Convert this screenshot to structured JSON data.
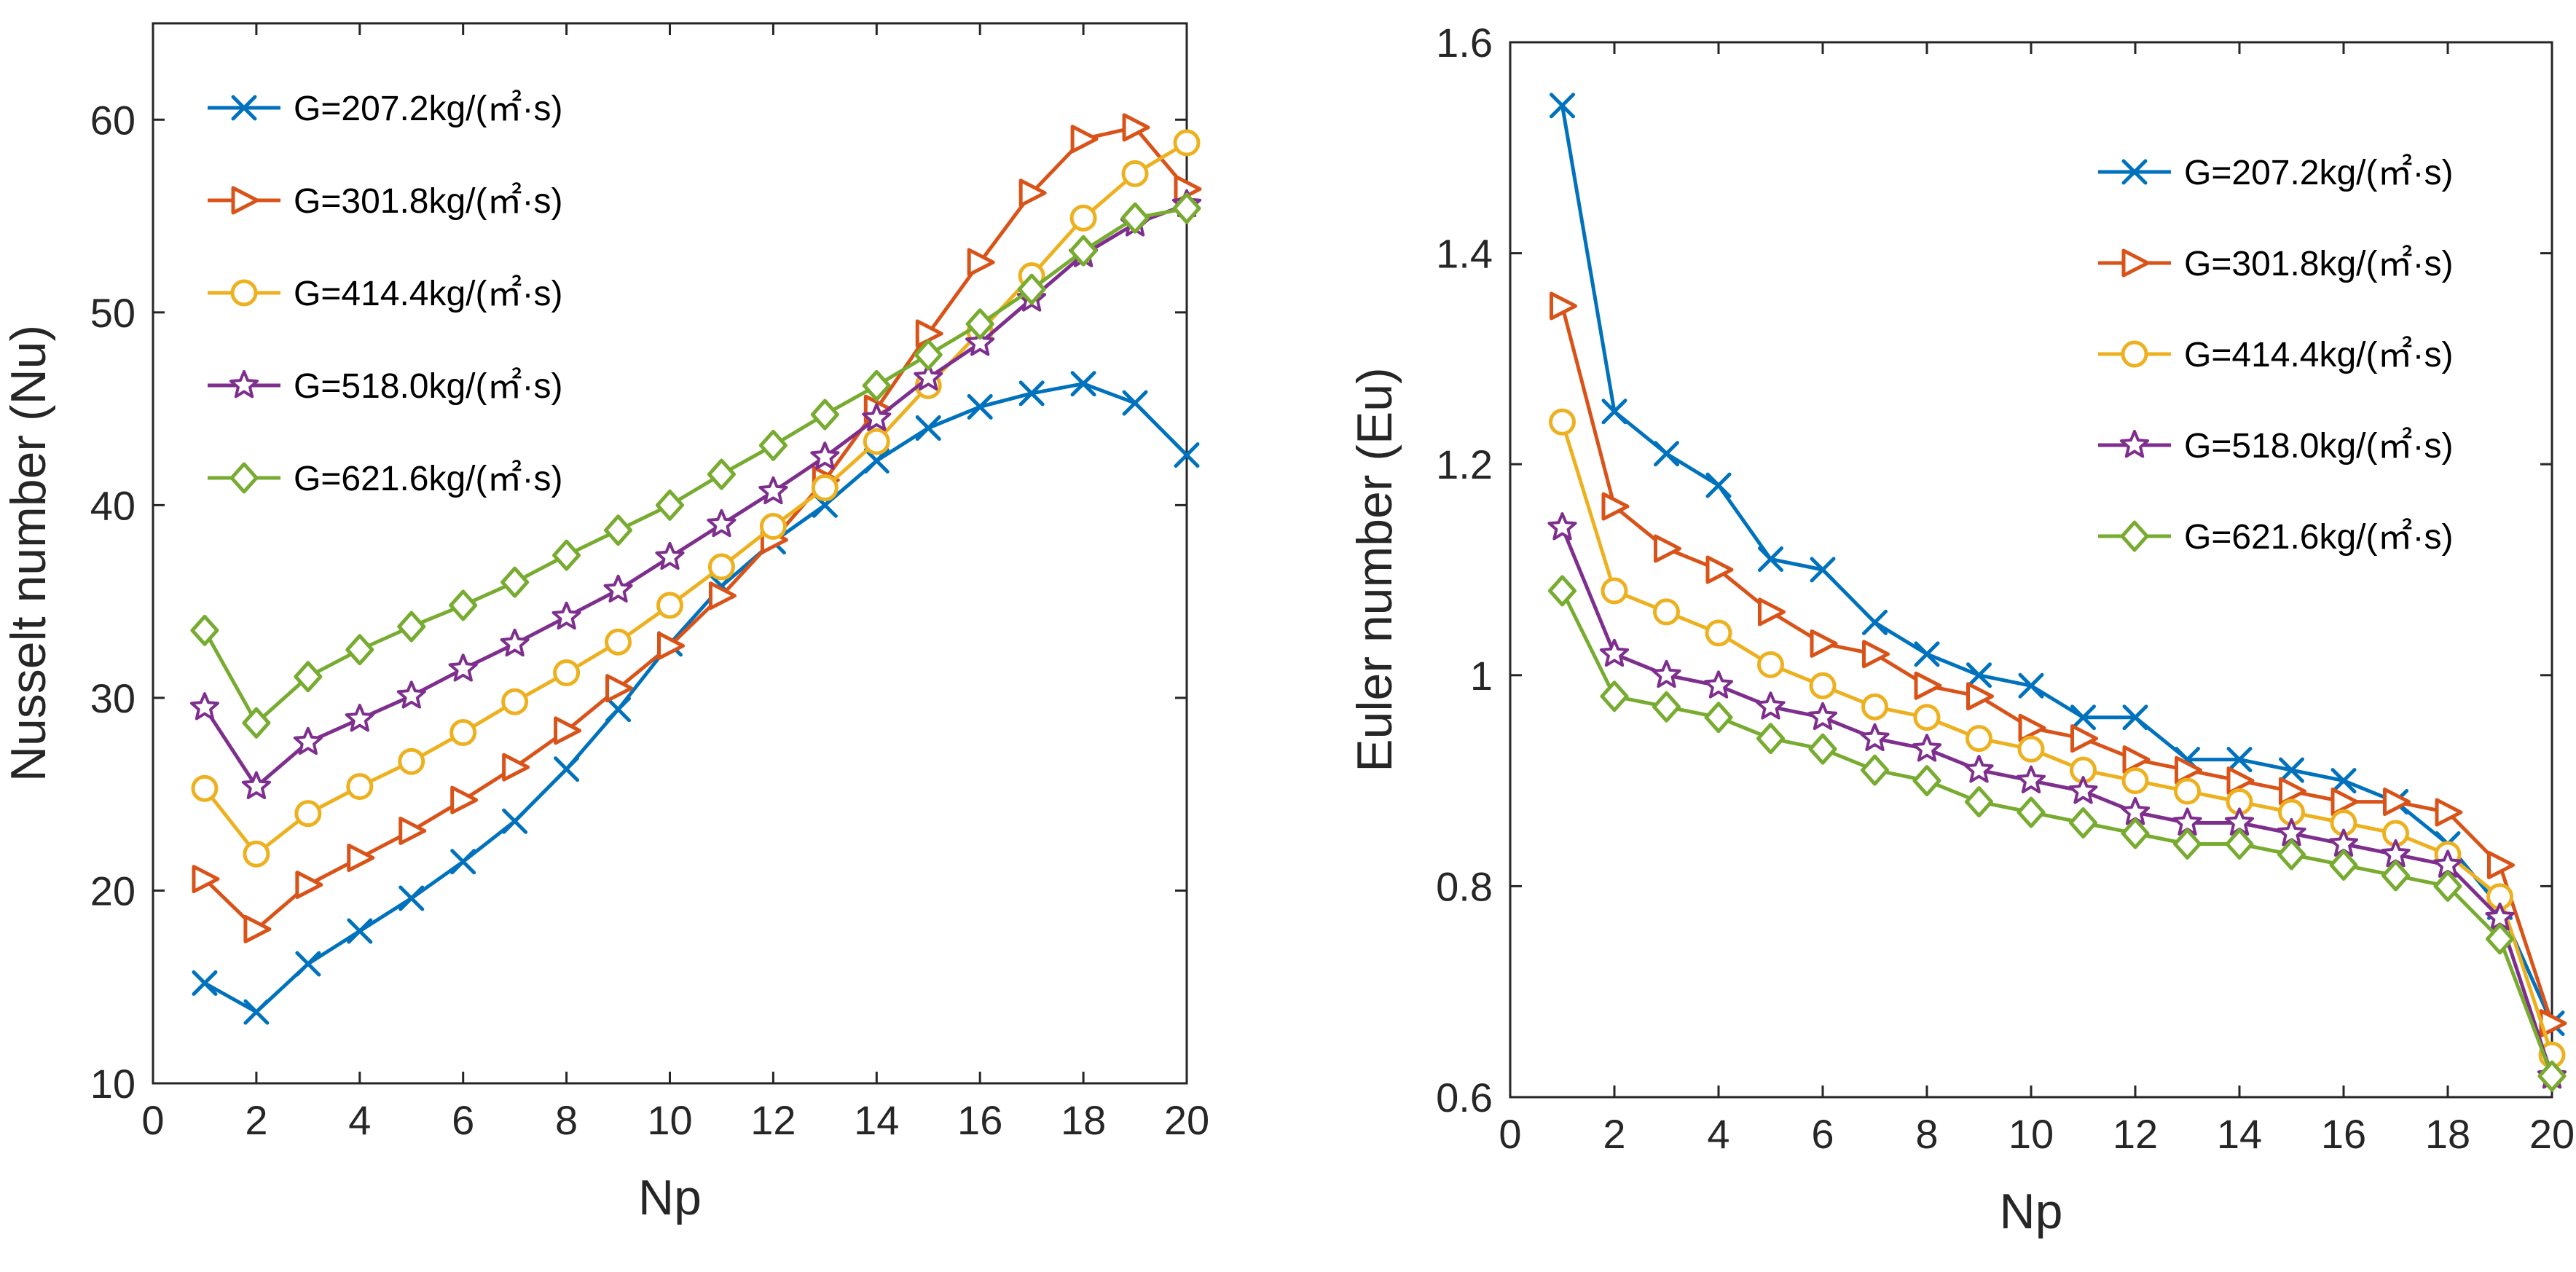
{
  "chart_data": [
    {
      "type": "line",
      "title": "",
      "xlabel": "Np",
      "ylabel": "Nusselt number (Nu)",
      "xlim": [
        0,
        20
      ],
      "ylim": [
        10,
        65
      ],
      "xticks": [
        0,
        2,
        4,
        6,
        8,
        10,
        12,
        14,
        16,
        18,
        20
      ],
      "xtick_labels": [
        "0",
        "2",
        "4",
        "6",
        "8",
        "10",
        "12",
        "14",
        "16",
        "18",
        "20"
      ],
      "yticks": [
        10,
        20,
        30,
        40,
        50,
        60
      ],
      "ytick_labels": [
        "10",
        "20",
        "30",
        "40",
        "50",
        "60"
      ],
      "legend_position": "top-left",
      "grid": false,
      "x": [
        1,
        2,
        3,
        4,
        5,
        6,
        7,
        8,
        9,
        10,
        11,
        12,
        13,
        14,
        15,
        16,
        17,
        18,
        19,
        20
      ],
      "series": [
        {
          "name": "G=207.2kg/(㎡·s)",
          "color": "#0072BD",
          "marker": "x",
          "values": [
            15.2,
            13.7,
            16.2,
            17.9,
            19.6,
            21.5,
            23.6,
            26.3,
            29.4,
            32.8,
            35.8,
            38.1,
            40.0,
            42.3,
            44.0,
            45.1,
            45.8,
            46.3,
            45.3,
            42.6
          ]
        },
        {
          "name": "G=301.8kg/(㎡·s)",
          "color": "#D95319",
          "marker": "triangle-right",
          "values": [
            20.6,
            18.0,
            20.3,
            21.7,
            23.1,
            24.7,
            26.4,
            28.3,
            30.5,
            32.7,
            35.3,
            38.2,
            41.3,
            45.0,
            48.9,
            52.6,
            56.2,
            59.0,
            59.6,
            56.4
          ]
        },
        {
          "name": "G=414.4kg/(㎡·s)",
          "color": "#EDB120",
          "marker": "circle",
          "values": [
            25.3,
            21.9,
            24.0,
            25.4,
            26.7,
            28.2,
            29.8,
            31.3,
            32.9,
            34.8,
            36.8,
            38.9,
            40.9,
            43.3,
            46.2,
            49.0,
            51.9,
            54.9,
            57.2,
            58.8
          ]
        },
        {
          "name": "G=518.0kg/(㎡·s)",
          "color": "#7E2F8E",
          "marker": "star",
          "values": [
            29.5,
            25.4,
            27.7,
            28.9,
            30.1,
            31.5,
            32.8,
            34.2,
            35.6,
            37.3,
            39.0,
            40.7,
            42.5,
            44.5,
            46.6,
            48.4,
            50.7,
            53.0,
            54.6,
            55.6
          ]
        },
        {
          "name": "G=621.6kg/(㎡·s)",
          "color": "#77AC30",
          "marker": "diamond",
          "values": [
            33.5,
            28.7,
            31.1,
            32.5,
            33.7,
            34.8,
            36.0,
            37.4,
            38.7,
            40.0,
            41.6,
            43.1,
            44.7,
            46.2,
            47.8,
            49.4,
            51.2,
            53.2,
            54.9,
            55.4
          ]
        }
      ]
    },
    {
      "type": "line",
      "title": "",
      "xlabel": "Np",
      "ylabel": "Euler number (Eu)",
      "xlim": [
        0,
        20
      ],
      "ylim": [
        0.6,
        1.6
      ],
      "xticks": [
        0,
        2,
        4,
        6,
        8,
        10,
        12,
        14,
        16,
        18,
        20
      ],
      "xtick_labels": [
        "0",
        "2",
        "4",
        "6",
        "8",
        "10",
        "12",
        "14",
        "16",
        "18",
        "20"
      ],
      "yticks": [
        0.6,
        0.8,
        1.0,
        1.2,
        1.4,
        1.6
      ],
      "ytick_labels": [
        "0.6",
        "0.8",
        "1",
        "1.2",
        "1.4",
        "1.6"
      ],
      "legend_position": "top-right",
      "grid": false,
      "x": [
        1,
        2,
        3,
        4,
        5,
        6,
        7,
        8,
        9,
        10,
        11,
        12,
        13,
        14,
        15,
        16,
        17,
        18,
        19,
        20
      ],
      "series": [
        {
          "name": "G=207.2kg/(㎡·s)",
          "color": "#0072BD",
          "marker": "x",
          "values": [
            1.54,
            1.25,
            1.21,
            1.18,
            1.11,
            1.1,
            1.05,
            1.02,
            1.0,
            0.99,
            0.96,
            0.96,
            0.92,
            0.92,
            0.91,
            0.9,
            0.88,
            0.84,
            0.78,
            0.67
          ]
        },
        {
          "name": "G=301.8kg/(㎡·s)",
          "color": "#D95319",
          "marker": "triangle-right",
          "values": [
            1.35,
            1.16,
            1.12,
            1.1,
            1.06,
            1.03,
            1.02,
            0.99,
            0.98,
            0.95,
            0.94,
            0.92,
            0.91,
            0.9,
            0.89,
            0.88,
            0.88,
            0.87,
            0.82,
            0.67
          ]
        },
        {
          "name": "G=414.4kg/(㎡·s)",
          "color": "#EDB120",
          "marker": "circle",
          "values": [
            1.24,
            1.08,
            1.06,
            1.04,
            1.01,
            0.99,
            0.97,
            0.96,
            0.94,
            0.93,
            0.91,
            0.9,
            0.89,
            0.88,
            0.87,
            0.86,
            0.85,
            0.83,
            0.79,
            0.64
          ]
        },
        {
          "name": "G=518.0kg/(㎡·s)",
          "color": "#7E2F8E",
          "marker": "star",
          "values": [
            1.14,
            1.02,
            1.0,
            0.99,
            0.97,
            0.96,
            0.94,
            0.93,
            0.91,
            0.9,
            0.89,
            0.87,
            0.86,
            0.86,
            0.85,
            0.84,
            0.83,
            0.82,
            0.77,
            0.62
          ]
        },
        {
          "name": "G=621.6kg/(㎡·s)",
          "color": "#77AC30",
          "marker": "diamond",
          "values": [
            1.08,
            0.98,
            0.97,
            0.96,
            0.94,
            0.93,
            0.91,
            0.9,
            0.88,
            0.87,
            0.86,
            0.85,
            0.84,
            0.84,
            0.83,
            0.82,
            0.81,
            0.8,
            0.75,
            0.62
          ]
        }
      ]
    }
  ]
}
